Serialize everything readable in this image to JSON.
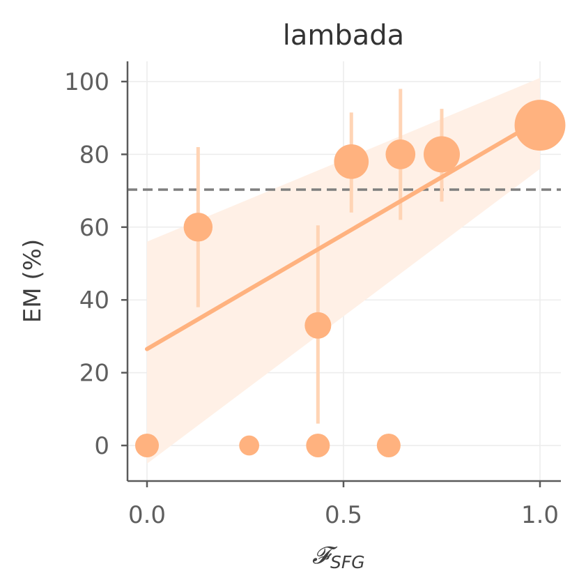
{
  "chart_data": {
    "type": "scatter",
    "title": "lambada",
    "xlabel_main": "𝓕",
    "xlabel_sub": "SFG",
    "ylabel": "EM (%)",
    "xlim": [
      -0.05,
      1.05
    ],
    "ylim": [
      -10,
      105
    ],
    "x_ticks": [
      0.0,
      0.5,
      1.0
    ],
    "x_tick_labels": [
      "0.0",
      "0.5",
      "1.0"
    ],
    "y_ticks": [
      0,
      20,
      40,
      60,
      80,
      100
    ],
    "y_tick_labels": [
      "0",
      "20",
      "40",
      "60",
      "80",
      "100"
    ],
    "grid": true,
    "reference_line": {
      "y": 70.3,
      "style": "dashed",
      "color": "#7f7f7f"
    },
    "regression": {
      "x": [
        0.0,
        1.0
      ],
      "y": [
        26.5,
        89.5
      ],
      "ci_lower": [
        -5,
        76
      ],
      "ci_upper": [
        56,
        101
      ],
      "color": "#FFB27F"
    },
    "points": [
      {
        "x": 0.0,
        "y": 0,
        "size": 1
      },
      {
        "x": 0.13,
        "y": 60,
        "err_low": 38,
        "err_high": 82,
        "size": 2
      },
      {
        "x": 0.26,
        "y": 0,
        "size": 0.5
      },
      {
        "x": 0.435,
        "y": 33,
        "err_low": 6,
        "err_high": 60.5,
        "size": 1.5
      },
      {
        "x": 0.435,
        "y": 0,
        "size": 1
      },
      {
        "x": 0.52,
        "y": 78,
        "err_low": 64,
        "err_high": 91.5,
        "size": 3.5
      },
      {
        "x": 0.615,
        "y": 0,
        "size": 1
      },
      {
        "x": 0.645,
        "y": 80,
        "err_low": 62,
        "err_high": 98,
        "size": 2.2
      },
      {
        "x": 0.75,
        "y": 80,
        "err_low": 67,
        "err_high": 92.5,
        "size": 4
      },
      {
        "x": 1.0,
        "y": 88,
        "size": 10
      }
    ],
    "point_color": "#FFB27F",
    "errorbar_color": "#FFD4B5",
    "band_color": "#FFF0E6"
  }
}
